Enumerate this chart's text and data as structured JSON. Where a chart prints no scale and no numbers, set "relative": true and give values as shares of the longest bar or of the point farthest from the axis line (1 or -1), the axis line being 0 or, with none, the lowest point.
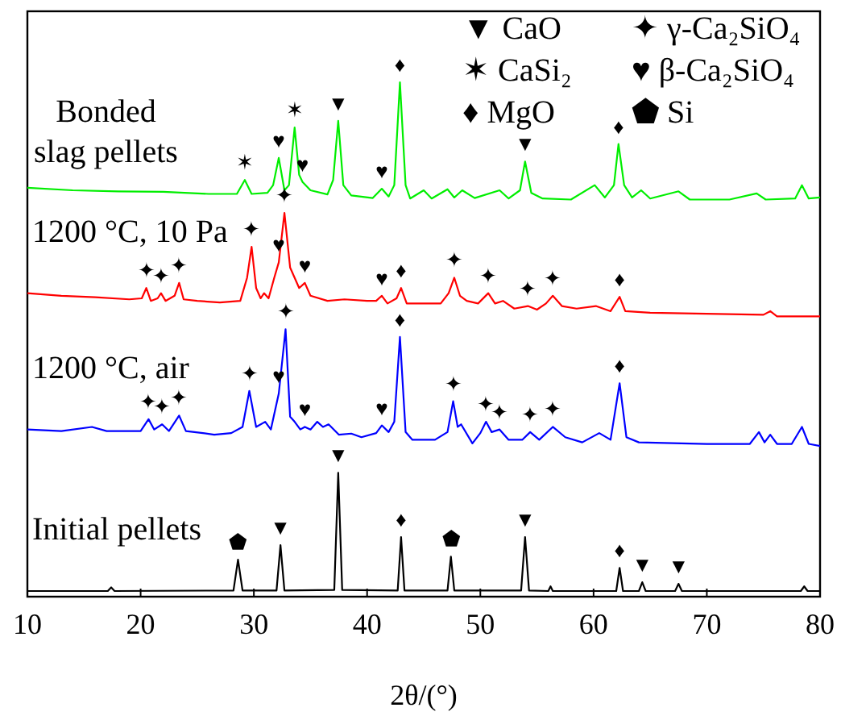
{
  "chart_data": {
    "type": "line",
    "relative": true,
    "xlabel": "2θ/(°)",
    "xlim": [
      10,
      80
    ],
    "xticks": [
      10,
      20,
      30,
      40,
      50,
      60,
      70,
      80
    ],
    "grid": false,
    "legend": false,
    "marker": "none",
    "line_style": "solid",
    "series": [
      {
        "name": "Bonded slag pellets",
        "color": "#00ee00",
        "x": [
          10,
          14,
          18,
          22,
          26,
          28.5,
          29.2,
          29.8,
          31.2,
          31.7,
          32.2,
          32.7,
          33.1,
          33.6,
          34.0,
          34.3,
          35,
          36.5,
          37.0,
          37.45,
          37.9,
          38.6,
          40.5,
          41.3,
          41.9,
          42.4,
          42.9,
          43.4,
          43.8,
          45.0,
          45.7,
          47.1,
          47.7,
          48.4,
          49.5,
          51.7,
          52.5,
          53.5,
          53.95,
          54.5,
          55.5,
          58,
          60.1,
          61,
          61.8,
          62.2,
          62.7,
          63.4,
          64.2,
          65,
          67.5,
          68.5,
          72,
          74.4,
          75.2,
          77.8,
          78.4,
          79,
          80
        ],
        "values": [
          0.795,
          0.79,
          0.788,
          0.787,
          0.783,
          0.783,
          0.81,
          0.783,
          0.785,
          0.8,
          0.853,
          0.79,
          0.8,
          0.912,
          0.82,
          0.806,
          0.79,
          0.782,
          0.81,
          0.925,
          0.8,
          0.78,
          0.775,
          0.793,
          0.778,
          0.8,
          1.0,
          0.8,
          0.774,
          0.79,
          0.774,
          0.792,
          0.776,
          0.79,
          0.775,
          0.79,
          0.774,
          0.79,
          0.846,
          0.785,
          0.774,
          0.772,
          0.8,
          0.776,
          0.8,
          0.88,
          0.8,
          0.776,
          0.79,
          0.774,
          0.788,
          0.772,
          0.772,
          0.784,
          0.772,
          0.774,
          0.8,
          0.774,
          0.776
        ]
      },
      {
        "name": "1200 °C, 10 Pa",
        "color": "#ff0000",
        "x": [
          10,
          13,
          16,
          19,
          20.1,
          20.5,
          20.9,
          21.5,
          21.8,
          22.2,
          23.0,
          23.4,
          23.8,
          25,
          27,
          28.8,
          29.4,
          29.8,
          30.2,
          30.6,
          30.9,
          31.3,
          31.8,
          32.2,
          32.7,
          33.2,
          33.6,
          34.0,
          34.5,
          35,
          36.5,
          38,
          40,
          40.8,
          41.3,
          41.8,
          42.6,
          43.0,
          43.5,
          45,
          46.5,
          47.2,
          47.7,
          48.2,
          48.8,
          49.8,
          50.7,
          51.3,
          52.0,
          53,
          54.2,
          55,
          55.8,
          56.4,
          57.2,
          58.5,
          60.2,
          61.5,
          62.3,
          62.8,
          65,
          70,
          75,
          75.6,
          76.2,
          80
        ],
        "values": [
          0.59,
          0.585,
          0.582,
          0.578,
          0.58,
          0.6,
          0.575,
          0.58,
          0.59,
          0.575,
          0.585,
          0.61,
          0.578,
          0.575,
          0.572,
          0.575,
          0.62,
          0.68,
          0.6,
          0.58,
          0.59,
          0.58,
          0.62,
          0.65,
          0.746,
          0.64,
          0.62,
          0.6,
          0.61,
          0.585,
          0.575,
          0.578,
          0.575,
          0.575,
          0.585,
          0.57,
          0.58,
          0.6,
          0.57,
          0.57,
          0.57,
          0.59,
          0.62,
          0.585,
          0.575,
          0.57,
          0.59,
          0.57,
          0.575,
          0.56,
          0.565,
          0.558,
          0.57,
          0.585,
          0.565,
          0.56,
          0.565,
          0.555,
          0.583,
          0.555,
          0.552,
          0.55,
          0.548,
          0.555,
          0.545,
          0.545
        ]
      },
      {
        "name": "1200 °C, air",
        "color": "#0000ff",
        "x": [
          10,
          13,
          15.7,
          17,
          20,
          20.7,
          21.2,
          21.9,
          22.5,
          23.4,
          24,
          25.5,
          26.5,
          28,
          29.0,
          29.6,
          30.2,
          31.0,
          31.5,
          32.2,
          32.8,
          33.2,
          33.6,
          34.1,
          34.5,
          35.0,
          35.6,
          36.1,
          36.6,
          37.5,
          38.6,
          39.5,
          40.8,
          41.3,
          41.9,
          42.4,
          42.9,
          43.4,
          44,
          46,
          47.1,
          47.6,
          48.0,
          48.3,
          49.3,
          50.0,
          50.5,
          51.0,
          51.7,
          52.5,
          53.7,
          54.4,
          55.2,
          56.4,
          57.5,
          59,
          60.5,
          61.5,
          62.3,
          62.9,
          64,
          70,
          73.8,
          74.6,
          75.1,
          75.6,
          76.2,
          77.5,
          78.4,
          79,
          80
        ],
        "values": [
          0.325,
          0.322,
          0.33,
          0.322,
          0.322,
          0.345,
          0.325,
          0.335,
          0.322,
          0.352,
          0.322,
          0.318,
          0.315,
          0.318,
          0.33,
          0.4,
          0.33,
          0.34,
          0.325,
          0.395,
          0.52,
          0.35,
          0.34,
          0.325,
          0.33,
          0.325,
          0.34,
          0.33,
          0.335,
          0.315,
          0.317,
          0.31,
          0.318,
          0.333,
          0.32,
          0.34,
          0.505,
          0.32,
          0.305,
          0.305,
          0.32,
          0.38,
          0.33,
          0.335,
          0.298,
          0.318,
          0.34,
          0.32,
          0.325,
          0.305,
          0.305,
          0.32,
          0.305,
          0.33,
          0.31,
          0.3,
          0.318,
          0.305,
          0.415,
          0.31,
          0.3,
          0.297,
          0.297,
          0.32,
          0.3,
          0.315,
          0.297,
          0.297,
          0.33,
          0.297,
          0.293
        ]
      },
      {
        "name": "Initial pellets",
        "color": "#000000",
        "x": [
          10,
          17.1,
          17.4,
          17.7,
          28.2,
          28.6,
          29.0,
          32.0,
          32.35,
          32.7,
          37.1,
          37.45,
          37.8,
          42.7,
          43.0,
          43.3,
          47.1,
          47.4,
          47.7,
          53.6,
          53.95,
          54.3,
          56.0,
          56.2,
          56.4,
          62.0,
          62.3,
          62.6,
          64.0,
          64.3,
          64.6,
          67.2,
          67.5,
          67.8,
          78.3,
          78.6,
          78.9,
          80
        ],
        "values": [
          0.011,
          0.011,
          0.018,
          0.011,
          0.012,
          0.072,
          0.012,
          0.012,
          0.1,
          0.012,
          0.013,
          0.241,
          0.013,
          0.012,
          0.116,
          0.012,
          0.012,
          0.078,
          0.012,
          0.012,
          0.116,
          0.012,
          0.011,
          0.02,
          0.011,
          0.011,
          0.056,
          0.011,
          0.011,
          0.028,
          0.011,
          0.011,
          0.025,
          0.011,
          0.011,
          0.02,
          0.011,
          0.011
        ]
      }
    ],
    "annotations": [
      "▼ CaO",
      "✦ γ-Ca₂SiO₄",
      "✶ CaSi₂",
      "♥ β-Ca₂SiO₄",
      "♦ MgO",
      "⬟ Si",
      {
        "text": "✶",
        "x": 29.2,
        "y": 0.81
      },
      {
        "text": "♥",
        "x": 32.2,
        "y": 0.853
      },
      {
        "text": "✶",
        "x": 33.6,
        "y": 0.912
      },
      {
        "text": "♥",
        "x": 34.3,
        "y": 0.806
      },
      {
        "text": "▼",
        "x": 37.45,
        "y": 0.925
      },
      {
        "text": "♥",
        "x": 41.3,
        "y": 0.793
      },
      {
        "text": "♦",
        "x": 42.9,
        "y": 1.0
      },
      {
        "text": "▼",
        "x": 53.95,
        "y": 0.846
      },
      {
        "text": "♦",
        "x": 62.2,
        "y": 0.88
      },
      {
        "text": "✦",
        "x": 20.5,
        "y": 0.6
      },
      {
        "text": "✦",
        "x": 21.8,
        "y": 0.59
      },
      {
        "text": "✦",
        "x": 23.4,
        "y": 0.61
      },
      {
        "text": "✦",
        "x": 29.8,
        "y": 0.68
      },
      {
        "text": "♥",
        "x": 32.2,
        "y": 0.65
      },
      {
        "text": "✦",
        "x": 32.7,
        "y": 0.746
      },
      {
        "text": "♥",
        "x": 34.5,
        "y": 0.61
      },
      {
        "text": "♥",
        "x": 41.3,
        "y": 0.585
      },
      {
        "text": "♦",
        "x": 43.0,
        "y": 0.6
      },
      {
        "text": "✦",
        "x": 47.7,
        "y": 0.62
      },
      {
        "text": "✦",
        "x": 50.7,
        "y": 0.59
      },
      {
        "text": "✦",
        "x": 54.2,
        "y": 0.565
      },
      {
        "text": "✦",
        "x": 56.4,
        "y": 0.585
      },
      {
        "text": "♦",
        "x": 62.3,
        "y": 0.583
      },
      {
        "text": "✦",
        "x": 20.7,
        "y": 0.345
      },
      {
        "text": "✦",
        "x": 21.9,
        "y": 0.335
      },
      {
        "text": "✦",
        "x": 23.4,
        "y": 0.352
      },
      {
        "text": "✦",
        "x": 29.6,
        "y": 0.4
      },
      {
        "text": "♥",
        "x": 32.2,
        "y": 0.395
      },
      {
        "text": "✦",
        "x": 32.8,
        "y": 0.52
      },
      {
        "text": "♥",
        "x": 34.5,
        "y": 0.33
      },
      {
        "text": "♥",
        "x": 41.3,
        "y": 0.333
      },
      {
        "text": "♦",
        "x": 42.9,
        "y": 0.505
      },
      {
        "text": "✦",
        "x": 47.6,
        "y": 0.38
      },
      {
        "text": "✦",
        "x": 50.5,
        "y": 0.34
      },
      {
        "text": "✦",
        "x": 51.7,
        "y": 0.325
      },
      {
        "text": "✦",
        "x": 54.4,
        "y": 0.32
      },
      {
        "text": "✦",
        "x": 56.4,
        "y": 0.33
      },
      {
        "text": "♦",
        "x": 62.3,
        "y": 0.415
      },
      {
        "text": "⬟",
        "x": 28.6,
        "y": 0.072
      },
      {
        "text": "▼",
        "x": 32.35,
        "y": 0.1
      },
      {
        "text": "▼",
        "x": 37.45,
        "y": 0.241
      },
      {
        "text": "♦",
        "x": 43.0,
        "y": 0.116
      },
      {
        "text": "⬟",
        "x": 47.4,
        "y": 0.078
      },
      {
        "text": "▼",
        "x": 53.95,
        "y": 0.116
      },
      {
        "text": "♦",
        "x": 62.3,
        "y": 0.056
      },
      {
        "text": "▼",
        "x": 64.3,
        "y": 0.028
      },
      {
        "text": "▼",
        "x": 67.5,
        "y": 0.025
      }
    ]
  }
}
